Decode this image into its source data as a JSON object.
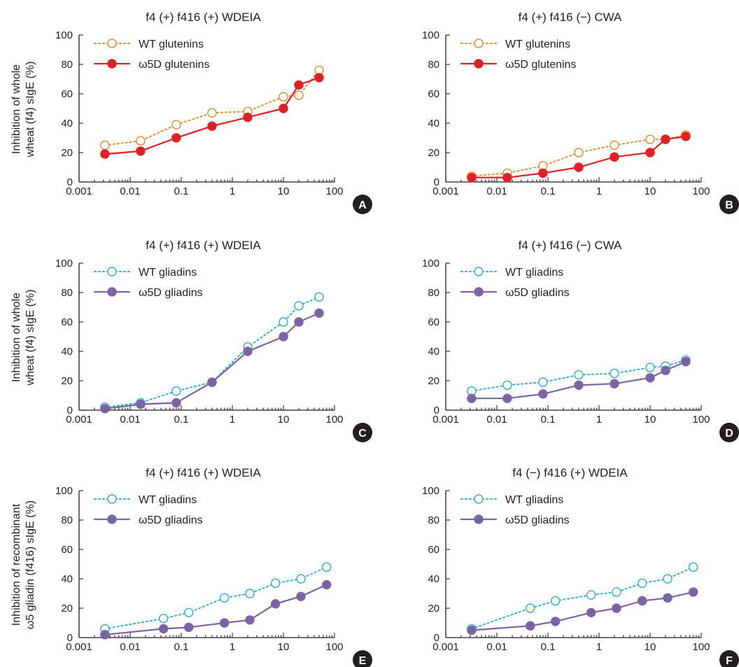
{
  "colors": {
    "glutenin_wt": "#f08a24",
    "glutenin_o5d": "#e31e25",
    "gliadin_wt": "#27b2d0",
    "gliadin_o5d": "#7b64a3",
    "axis": "#231f20"
  },
  "y_labels": [
    "Inhibition of whole wheat (f4) sIgE (%)",
    "Inhibition of whole wheat (f4) sIgE (%)",
    "Inhibition of recombinant ω5 gliadin (f416) sIgE (%)"
  ],
  "y_label_lines": [
    [
      "Inhibition of whole",
      "wheat (f4) sIgE (%)"
    ],
    [
      "Inhibition of whole",
      "wheat (f4) sIgE (%)"
    ],
    [
      "Inhibition of recombinant",
      "ω5 gliadin (f416) sIgE (%)"
    ]
  ],
  "chart_data": [
    {
      "panel": "A",
      "type": "line",
      "title": "f4 (+) f416 (+) WDEIA",
      "xscale": "log",
      "xlim": [
        0.001,
        100
      ],
      "ylim": [
        0,
        100
      ],
      "xticks": [
        "0.001",
        "0.01",
        "0.1",
        "1",
        "10",
        "100"
      ],
      "yticks": [
        "0",
        "20",
        "40",
        "60",
        "80",
        "100"
      ],
      "legend_position": "top-left",
      "series": [
        {
          "name": "WT glutenins",
          "style": "dotted-open",
          "color": "#f08a24",
          "x": [
            0.0032,
            0.016,
            0.08,
            0.4,
            2,
            10,
            20,
            50
          ],
          "y": [
            25,
            28,
            39,
            47,
            48,
            58,
            59,
            76
          ]
        },
        {
          "name": "ω5D glutenins",
          "style": "solid-filled",
          "color": "#e31e25",
          "x": [
            0.0032,
            0.016,
            0.08,
            0.4,
            2,
            10,
            20,
            50
          ],
          "y": [
            19,
            21,
            30,
            38,
            44,
            50,
            66,
            71
          ]
        }
      ]
    },
    {
      "panel": "B",
      "type": "line",
      "title": "f4 (+) f416 (−) CWA",
      "xscale": "log",
      "xlim": [
        0.001,
        100
      ],
      "ylim": [
        0,
        100
      ],
      "xticks": [
        "0.001",
        "0.01",
        "0.1",
        "1",
        "10",
        "100"
      ],
      "yticks": [
        "0",
        "20",
        "40",
        "60",
        "80",
        "100"
      ],
      "legend_position": "top-left",
      "series": [
        {
          "name": "WT glutenins",
          "style": "dotted-open",
          "color": "#f08a24",
          "x": [
            0.0032,
            0.016,
            0.08,
            0.4,
            2,
            10,
            20,
            50
          ],
          "y": [
            4,
            6,
            11,
            20,
            25,
            29,
            29,
            32
          ]
        },
        {
          "name": "ω5D glutenins",
          "style": "solid-filled",
          "color": "#e31e25",
          "x": [
            0.0032,
            0.016,
            0.08,
            0.4,
            2,
            10,
            20,
            50
          ],
          "y": [
            3,
            3,
            6,
            10,
            17,
            20,
            29,
            31
          ]
        }
      ]
    },
    {
      "panel": "C",
      "type": "line",
      "title": "f4 (+) f416 (+) WDEIA",
      "xscale": "log",
      "xlim": [
        0.001,
        100
      ],
      "ylim": [
        0,
        100
      ],
      "xticks": [
        "0.001",
        "0.01",
        "0.1",
        "1",
        "10",
        "100"
      ],
      "yticks": [
        "0",
        "20",
        "40",
        "60",
        "80",
        "100"
      ],
      "legend_position": "top-left",
      "series": [
        {
          "name": "WT gliadins",
          "style": "dotted-open",
          "color": "#27b2d0",
          "x": [
            0.0032,
            0.016,
            0.08,
            0.4,
            2,
            10,
            20,
            50
          ],
          "y": [
            2,
            5,
            13,
            19,
            43,
            60,
            71,
            77
          ]
        },
        {
          "name": "ω5D gliadins",
          "style": "solid-filled",
          "color": "#7b64a3",
          "x": [
            0.0032,
            0.016,
            0.08,
            0.4,
            2,
            10,
            20,
            50
          ],
          "y": [
            1,
            4,
            5,
            19,
            40,
            50,
            60,
            66
          ]
        }
      ]
    },
    {
      "panel": "D",
      "type": "line",
      "title": "f4 (+) f416 (−) CWA",
      "xscale": "log",
      "xlim": [
        0.001,
        100
      ],
      "ylim": [
        0,
        100
      ],
      "xticks": [
        "0.001",
        "0.01",
        "0.1",
        "1",
        "10",
        "100"
      ],
      "yticks": [
        "0",
        "20",
        "40",
        "60",
        "80",
        "100"
      ],
      "legend_position": "top-left",
      "series": [
        {
          "name": "WT gliadins",
          "style": "dotted-open",
          "color": "#27b2d0",
          "x": [
            0.0032,
            0.016,
            0.08,
            0.4,
            2,
            10,
            20,
            50
          ],
          "y": [
            13,
            17,
            19,
            24,
            25,
            29,
            30,
            34
          ]
        },
        {
          "name": "ω5D gliadins",
          "style": "solid-filled",
          "color": "#7b64a3",
          "x": [
            0.0032,
            0.016,
            0.08,
            0.4,
            2,
            10,
            20,
            50
          ],
          "y": [
            8,
            8,
            11,
            17,
            18,
            22,
            27,
            33
          ]
        }
      ]
    },
    {
      "panel": "E",
      "type": "line",
      "title": "f4 (+) f416 (+) WDEIA",
      "xscale": "log",
      "xlim": [
        0.001,
        100
      ],
      "ylim": [
        0,
        100
      ],
      "xticks": [
        "0.001",
        "0.01",
        "0.1",
        "1",
        "10",
        "100"
      ],
      "yticks": [
        "0",
        "20",
        "40",
        "60",
        "80",
        "100"
      ],
      "legend_position": "top-left",
      "series": [
        {
          "name": "WT gliadins",
          "style": "dotted-open",
          "color": "#27b2d0",
          "x": [
            0.0032,
            0.045,
            0.14,
            0.7,
            2.2,
            7,
            22,
            70
          ],
          "y": [
            6,
            13,
            17,
            27,
            30,
            37,
            40,
            48
          ]
        },
        {
          "name": "ω5D gliadins",
          "style": "solid-filled",
          "color": "#7b64a3",
          "x": [
            0.0032,
            0.045,
            0.14,
            0.7,
            2.2,
            7,
            22,
            70
          ],
          "y": [
            2,
            6,
            7,
            10,
            12,
            23,
            28,
            36
          ]
        }
      ]
    },
    {
      "panel": "F",
      "type": "line",
      "title": "f4 (−) f416 (+) WDEIA",
      "xscale": "log",
      "xlim": [
        0.001,
        100
      ],
      "ylim": [
        0,
        100
      ],
      "xticks": [
        "0.001",
        "0.01",
        "0.1",
        "1",
        "10",
        "100"
      ],
      "yticks": [
        "0",
        "20",
        "40",
        "60",
        "80",
        "100"
      ],
      "legend_position": "top-left",
      "series": [
        {
          "name": "WT gliadins",
          "style": "dotted-open",
          "color": "#27b2d0",
          "x": [
            0.0032,
            0.045,
            0.14,
            0.7,
            2.2,
            7,
            22,
            70
          ],
          "y": [
            6,
            20,
            25,
            29,
            31,
            37,
            40,
            48
          ]
        },
        {
          "name": "ω5D gliadins",
          "style": "solid-filled",
          "color": "#7b64a3",
          "x": [
            0.0032,
            0.045,
            0.14,
            0.7,
            2.2,
            7,
            22,
            70
          ],
          "y": [
            5,
            8,
            11,
            17,
            20,
            25,
            27,
            31
          ]
        }
      ]
    }
  ]
}
